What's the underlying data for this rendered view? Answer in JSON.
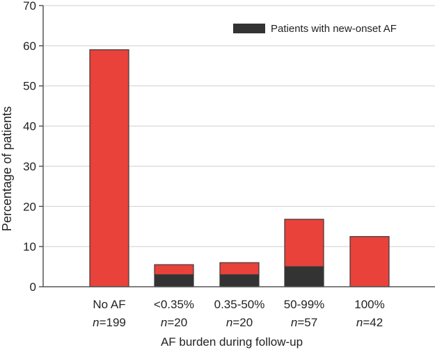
{
  "chart_data": {
    "type": "bar",
    "stacked": true,
    "xlabel": "AF burden during follow-up",
    "ylabel": "Percentage of patients",
    "ylim": [
      0,
      70
    ],
    "yticks": [
      0,
      10,
      20,
      30,
      40,
      50,
      60,
      70
    ],
    "grid": true,
    "legend_position": "top-right",
    "categories": [
      "No AF",
      "<0.35%",
      "0.35-50%",
      "50-99%",
      "100%"
    ],
    "category_n": [
      "199",
      "20",
      "20",
      "57",
      "42"
    ],
    "n_prefix": "n",
    "series": [
      {
        "name": "Patients with new-onset AF",
        "color": "#333333",
        "values": [
          0,
          3,
          3,
          5,
          0
        ]
      },
      {
        "color": "#e8423a",
        "values": [
          59,
          2.5,
          3,
          11.8,
          12.5
        ]
      }
    ],
    "totals": [
      59,
      5.5,
      6,
      16.8,
      12.5
    ],
    "colors": {
      "bar_outline": "#3a3a3a",
      "axis": "#555555",
      "grid": "#cfcfcf"
    }
  }
}
